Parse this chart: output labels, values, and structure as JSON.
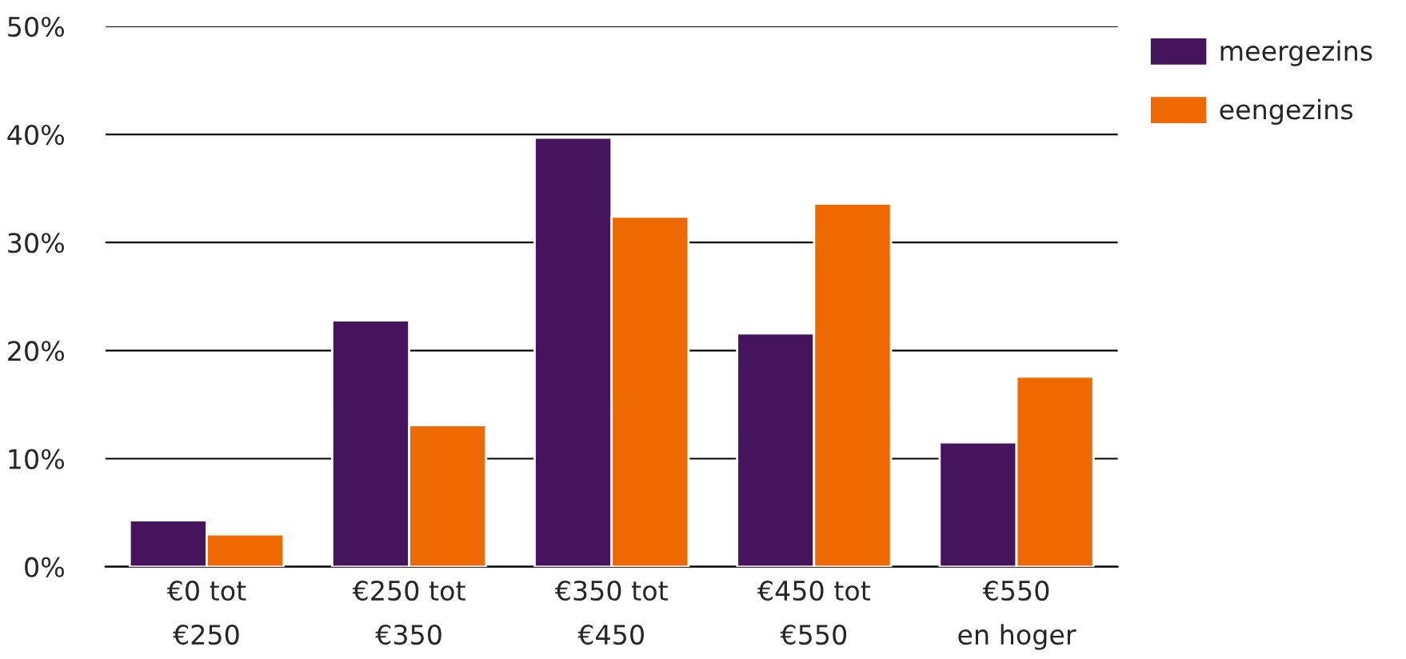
{
  "chart_data": {
    "type": "bar",
    "categories": [
      "€0 tot\n€250",
      "€250 tot\n€350",
      "€350 tot\n€450",
      "€450 tot\n€550",
      "€550\nen hoger"
    ],
    "series": [
      {
        "name": "meergezins",
        "color": "#46145a",
        "values": [
          4.3,
          22.8,
          39.7,
          21.6,
          11.5
        ]
      },
      {
        "name": "eengezins",
        "color": "#ee6a00",
        "values": [
          3.0,
          13.1,
          32.4,
          33.6,
          17.6
        ]
      }
    ],
    "ylim": [
      0,
      50
    ],
    "yticks": [
      {
        "value": 0,
        "label": "0%"
      },
      {
        "value": 10,
        "label": "10%"
      },
      {
        "value": 20,
        "label": "20%"
      },
      {
        "value": 30,
        "label": "30%"
      },
      {
        "value": 40,
        "label": "40%"
      },
      {
        "value": 50,
        "label": "50%"
      }
    ],
    "grid": "y",
    "legend": "top right"
  }
}
